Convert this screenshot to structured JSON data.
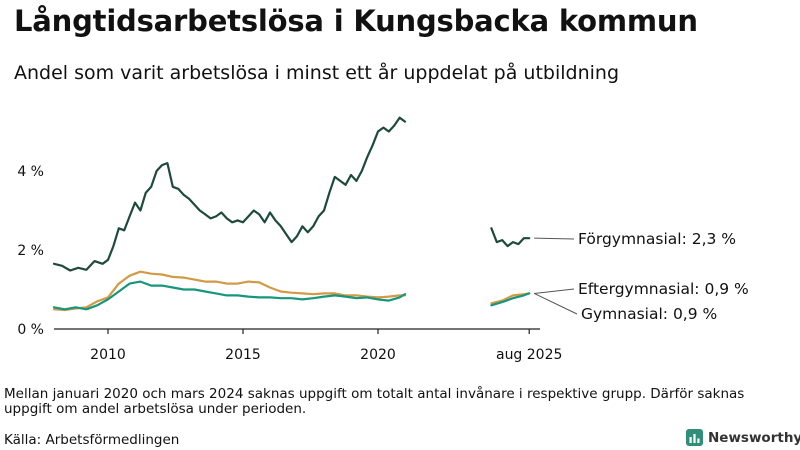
{
  "title": "Långtidsarbetslösa i Kungsbacka kommun",
  "subtitle": "Andel som varit arbetslösa i minst ett år uppdelat på utbildning",
  "note": "Mellan januari 2020 och mars 2024 saknas uppgift om totalt antal invånare i respektive grupp. Därför saknas uppgift om andel arbetslösa under perioden.",
  "source": "Källa: Arbetsförmedlingen",
  "brand": "Newsworthy",
  "colors": {
    "forgymnasial": "#1e4a3c",
    "eftergymnasial": "#d39a46",
    "gymnasial": "#16967d",
    "axis": "#222222",
    "text": "#111111",
    "brand": "#2f8f7b"
  },
  "chart_data": {
    "type": "line",
    "ylabel": "",
    "xlabel": "",
    "ylim": [
      0,
      6
    ],
    "yticks": [
      {
        "value": 0,
        "label": "0 %"
      },
      {
        "value": 2,
        "label": "2 %"
      },
      {
        "value": 4,
        "label": "4 %"
      }
    ],
    "xlim": [
      2008.0,
      2026.0
    ],
    "xticks": [
      {
        "value": 2010.0,
        "label": "2010"
      },
      {
        "value": 2015.0,
        "label": "2015"
      },
      {
        "value": 2020.0,
        "label": "2020"
      },
      {
        "value": 2025.6,
        "label": "aug 2025"
      }
    ],
    "gap_note": "Data missing Jan 2020 (in chart extended to ~2021) to Mar 2024",
    "series": [
      {
        "name": "Förgymnasial",
        "end_label": "Förgymnasial: 2,3 %",
        "color_key": "forgymnasial",
        "segments": [
          [
            [
              2008.0,
              1.65
            ],
            [
              2008.3,
              1.6
            ],
            [
              2008.6,
              1.48
            ],
            [
              2008.9,
              1.55
            ],
            [
              2009.2,
              1.5
            ],
            [
              2009.5,
              1.72
            ],
            [
              2009.8,
              1.65
            ],
            [
              2010.0,
              1.75
            ],
            [
              2010.2,
              2.1
            ],
            [
              2010.4,
              2.55
            ],
            [
              2010.6,
              2.5
            ],
            [
              2010.8,
              2.85
            ],
            [
              2011.0,
              3.2
            ],
            [
              2011.2,
              3.0
            ],
            [
              2011.4,
              3.45
            ],
            [
              2011.6,
              3.6
            ],
            [
              2011.8,
              4.0
            ],
            [
              2012.0,
              4.15
            ],
            [
              2012.2,
              4.2
            ],
            [
              2012.4,
              3.6
            ],
            [
              2012.6,
              3.55
            ],
            [
              2012.8,
              3.4
            ],
            [
              2013.0,
              3.3
            ],
            [
              2013.2,
              3.15
            ],
            [
              2013.4,
              3.0
            ],
            [
              2013.6,
              2.9
            ],
            [
              2013.8,
              2.8
            ],
            [
              2014.0,
              2.85
            ],
            [
              2014.2,
              2.95
            ],
            [
              2014.4,
              2.8
            ],
            [
              2014.6,
              2.7
            ],
            [
              2014.8,
              2.75
            ],
            [
              2015.0,
              2.7
            ],
            [
              2015.2,
              2.85
            ],
            [
              2015.4,
              3.0
            ],
            [
              2015.6,
              2.9
            ],
            [
              2015.8,
              2.7
            ],
            [
              2016.0,
              2.95
            ],
            [
              2016.2,
              2.75
            ],
            [
              2016.4,
              2.6
            ],
            [
              2016.6,
              2.4
            ],
            [
              2016.8,
              2.2
            ],
            [
              2017.0,
              2.35
            ],
            [
              2017.2,
              2.6
            ],
            [
              2017.4,
              2.45
            ],
            [
              2017.6,
              2.6
            ],
            [
              2017.8,
              2.85
            ],
            [
              2018.0,
              3.0
            ],
            [
              2018.2,
              3.45
            ],
            [
              2018.4,
              3.85
            ],
            [
              2018.6,
              3.75
            ],
            [
              2018.8,
              3.65
            ],
            [
              2019.0,
              3.9
            ],
            [
              2019.2,
              3.75
            ],
            [
              2019.4,
              4.0
            ],
            [
              2019.6,
              4.35
            ],
            [
              2019.8,
              4.65
            ],
            [
              2020.0,
              5.0
            ],
            [
              2020.2,
              5.1
            ],
            [
              2020.4,
              5.0
            ],
            [
              2020.6,
              5.15
            ],
            [
              2020.8,
              5.35
            ],
            [
              2021.0,
              5.25
            ]
          ],
          [
            [
              2024.2,
              2.55
            ],
            [
              2024.4,
              2.2
            ],
            [
              2024.6,
              2.25
            ],
            [
              2024.8,
              2.1
            ],
            [
              2025.0,
              2.2
            ],
            [
              2025.2,
              2.15
            ],
            [
              2025.4,
              2.3
            ],
            [
              2025.6,
              2.3
            ]
          ]
        ]
      },
      {
        "name": "Eftergymnasial",
        "end_label": "Eftergymnasial: 0,9 %",
        "color_key": "eftergymnasial",
        "segments": [
          [
            [
              2008.0,
              0.5
            ],
            [
              2008.4,
              0.48
            ],
            [
              2008.8,
              0.52
            ],
            [
              2009.2,
              0.55
            ],
            [
              2009.6,
              0.7
            ],
            [
              2010.0,
              0.8
            ],
            [
              2010.4,
              1.15
            ],
            [
              2010.8,
              1.35
            ],
            [
              2011.2,
              1.45
            ],
            [
              2011.6,
              1.4
            ],
            [
              2012.0,
              1.38
            ],
            [
              2012.4,
              1.32
            ],
            [
              2012.8,
              1.3
            ],
            [
              2013.2,
              1.25
            ],
            [
              2013.6,
              1.2
            ],
            [
              2014.0,
              1.2
            ],
            [
              2014.4,
              1.15
            ],
            [
              2014.8,
              1.15
            ],
            [
              2015.2,
              1.2
            ],
            [
              2015.6,
              1.18
            ],
            [
              2016.0,
              1.05
            ],
            [
              2016.4,
              0.95
            ],
            [
              2016.8,
              0.92
            ],
            [
              2017.2,
              0.9
            ],
            [
              2017.6,
              0.88
            ],
            [
              2018.0,
              0.9
            ],
            [
              2018.4,
              0.9
            ],
            [
              2018.8,
              0.85
            ],
            [
              2019.2,
              0.85
            ],
            [
              2019.6,
              0.82
            ],
            [
              2020.0,
              0.8
            ],
            [
              2020.4,
              0.82
            ],
            [
              2020.8,
              0.85
            ],
            [
              2021.0,
              0.85
            ]
          ],
          [
            [
              2024.2,
              0.65
            ],
            [
              2024.6,
              0.72
            ],
            [
              2025.0,
              0.85
            ],
            [
              2025.4,
              0.88
            ],
            [
              2025.6,
              0.9
            ]
          ]
        ]
      },
      {
        "name": "Gymnasial",
        "end_label": "Gymnasial: 0,9 %",
        "color_key": "gymnasial",
        "segments": [
          [
            [
              2008.0,
              0.55
            ],
            [
              2008.4,
              0.5
            ],
            [
              2008.8,
              0.55
            ],
            [
              2009.2,
              0.5
            ],
            [
              2009.6,
              0.6
            ],
            [
              2010.0,
              0.75
            ],
            [
              2010.4,
              0.95
            ],
            [
              2010.8,
              1.15
            ],
            [
              2011.2,
              1.2
            ],
            [
              2011.6,
              1.1
            ],
            [
              2012.0,
              1.1
            ],
            [
              2012.4,
              1.05
            ],
            [
              2012.8,
              1.0
            ],
            [
              2013.2,
              1.0
            ],
            [
              2013.6,
              0.95
            ],
            [
              2014.0,
              0.9
            ],
            [
              2014.4,
              0.85
            ],
            [
              2014.8,
              0.85
            ],
            [
              2015.2,
              0.82
            ],
            [
              2015.6,
              0.8
            ],
            [
              2016.0,
              0.8
            ],
            [
              2016.4,
              0.78
            ],
            [
              2016.8,
              0.78
            ],
            [
              2017.2,
              0.75
            ],
            [
              2017.6,
              0.78
            ],
            [
              2018.0,
              0.82
            ],
            [
              2018.4,
              0.85
            ],
            [
              2018.8,
              0.82
            ],
            [
              2019.2,
              0.78
            ],
            [
              2019.6,
              0.8
            ],
            [
              2020.0,
              0.75
            ],
            [
              2020.4,
              0.72
            ],
            [
              2020.8,
              0.8
            ],
            [
              2021.0,
              0.88
            ]
          ],
          [
            [
              2024.2,
              0.6
            ],
            [
              2024.6,
              0.68
            ],
            [
              2025.0,
              0.78
            ],
            [
              2025.4,
              0.85
            ],
            [
              2025.6,
              0.9
            ]
          ]
        ]
      }
    ]
  }
}
